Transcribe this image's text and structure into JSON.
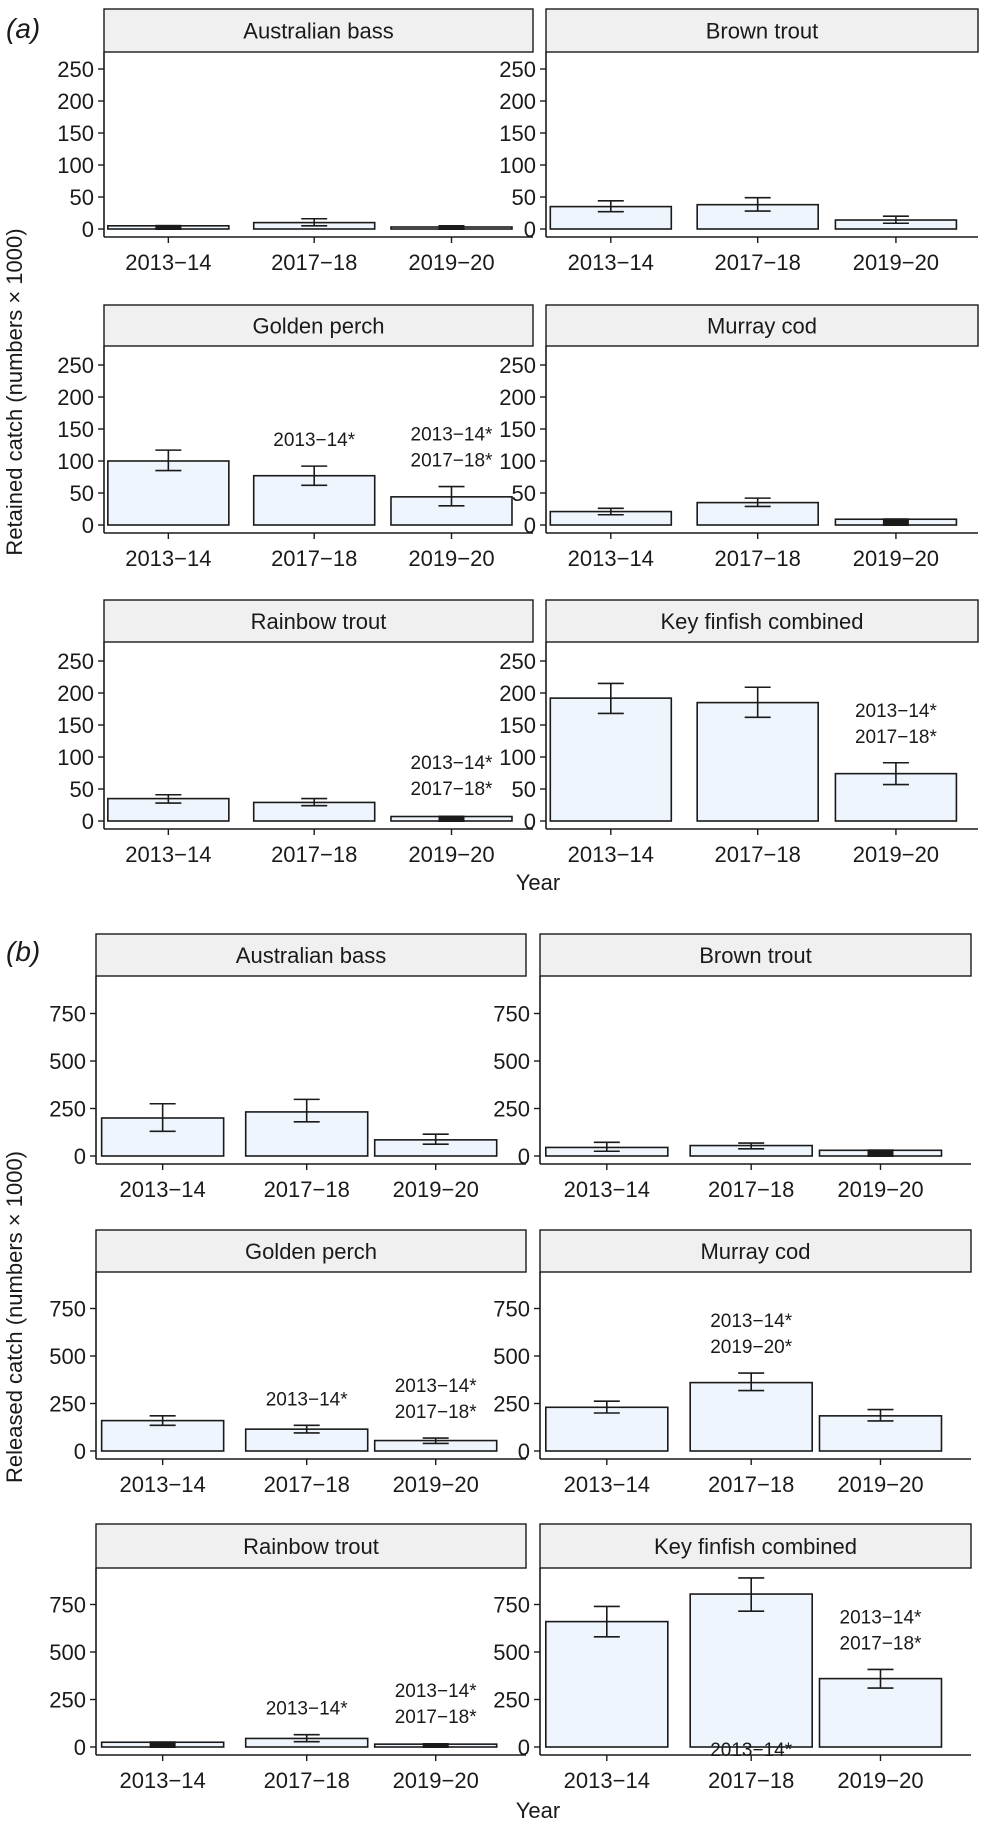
{
  "figure": {
    "part_labels": [
      "(a)",
      "(b)"
    ],
    "colors": {
      "bar_fill": "#eef5fd",
      "bar_stroke": "#1a1a1a",
      "strip_fill": "#f0f0f0",
      "axis": "#1a1a1a"
    }
  },
  "chart_data": [
    {
      "type": "bar",
      "part": "(a)",
      "ylabel": "Retained catch (numbers × 1000)",
      "xlabel": "Year",
      "ylim": [
        0,
        260
      ],
      "yticks": [
        "0",
        "50",
        "100",
        "150",
        "200",
        "250"
      ],
      "categories": [
        "2013−14",
        "2017−18",
        "2019−20"
      ],
      "panels": [
        {
          "title": "Australian bass",
          "values": [
            5,
            10,
            2
          ],
          "err_low": [
            3,
            5,
            1
          ],
          "err_high": [
            7,
            16,
            3
          ],
          "annotations": [
            "",
            "",
            ""
          ]
        },
        {
          "title": "Brown trout",
          "values": [
            35,
            38,
            14
          ],
          "err_low": [
            27,
            28,
            9
          ],
          "err_high": [
            44,
            49,
            20
          ],
          "annotations": [
            "",
            "",
            ""
          ]
        },
        {
          "title": "Golden perch",
          "values": [
            100,
            77,
            44
          ],
          "err_low": [
            85,
            62,
            30
          ],
          "err_high": [
            117,
            92,
            60
          ],
          "annotations": [
            "",
            "2013−14*",
            "2013−14*\n2017−18*"
          ]
        },
        {
          "title": "Murray cod",
          "values": [
            21,
            35,
            9
          ],
          "err_low": [
            16,
            29,
            7
          ],
          "err_high": [
            26,
            42,
            11
          ],
          "annotations": [
            "",
            "",
            ""
          ]
        },
        {
          "title": "Rainbow trout",
          "values": [
            35,
            29,
            7
          ],
          "err_low": [
            28,
            24,
            5
          ],
          "err_high": [
            41,
            35,
            9
          ],
          "annotations": [
            "",
            "",
            "2013−14*\n2017−18*"
          ]
        },
        {
          "title": "Key finfish combined",
          "values": [
            192,
            185,
            74
          ],
          "err_low": [
            168,
            162,
            57
          ],
          "err_high": [
            215,
            209,
            91
          ],
          "annotations": [
            "",
            "",
            "2013−14*\n2017−18*"
          ]
        }
      ]
    },
    {
      "type": "bar",
      "part": "(b)",
      "ylabel": "Released catch (numbers × 1000)",
      "xlabel": "Year",
      "ylim": [
        0,
        1000
      ],
      "yticks": [
        "0",
        "250",
        "500",
        "750"
      ],
      "categories": [
        "2013−14",
        "2017−18",
        "2019−20"
      ],
      "panels": [
        {
          "title": "Australian bass",
          "values": [
            200,
            232,
            85
          ],
          "err_low": [
            130,
            180,
            62
          ],
          "err_high": [
            275,
            298,
            115
          ],
          "annotations": [
            "",
            "",
            ""
          ]
        },
        {
          "title": "Brown trout",
          "values": [
            45,
            55,
            30
          ],
          "err_low": [
            25,
            38,
            22
          ],
          "err_high": [
            72,
            68,
            36
          ],
          "annotations": [
            "",
            "",
            ""
          ]
        },
        {
          "title": "Golden perch",
          "values": [
            160,
            115,
            55
          ],
          "err_low": [
            135,
            95,
            40
          ],
          "err_high": [
            185,
            135,
            68
          ],
          "annotations": [
            "",
            "2013−14*",
            "2013−14*\n2017−18*"
          ]
        },
        {
          "title": "Murray cod",
          "values": [
            230,
            360,
            185
          ],
          "err_low": [
            200,
            318,
            158
          ],
          "err_high": [
            262,
            410,
            218
          ],
          "annotations": [
            "",
            "2013−14*\n2019−20*",
            ""
          ]
        },
        {
          "title": "Rainbow trout",
          "values": [
            25,
            45,
            15
          ],
          "err_low": [
            15,
            28,
            10
          ],
          "err_high": [
            33,
            65,
            22
          ],
          "annotations": [
            "",
            "2013−14*",
            "2013−14*\n2017−18*"
          ]
        },
        {
          "title": "Key finfish combined",
          "values": [
            660,
            805,
            360
          ],
          "err_low": [
            580,
            715,
            310
          ],
          "err_high": [
            740,
            890,
            408
          ],
          "annotations": [
            "",
            "2013−14*",
            "2013−14*\n2017−18*"
          ]
        }
      ]
    }
  ]
}
